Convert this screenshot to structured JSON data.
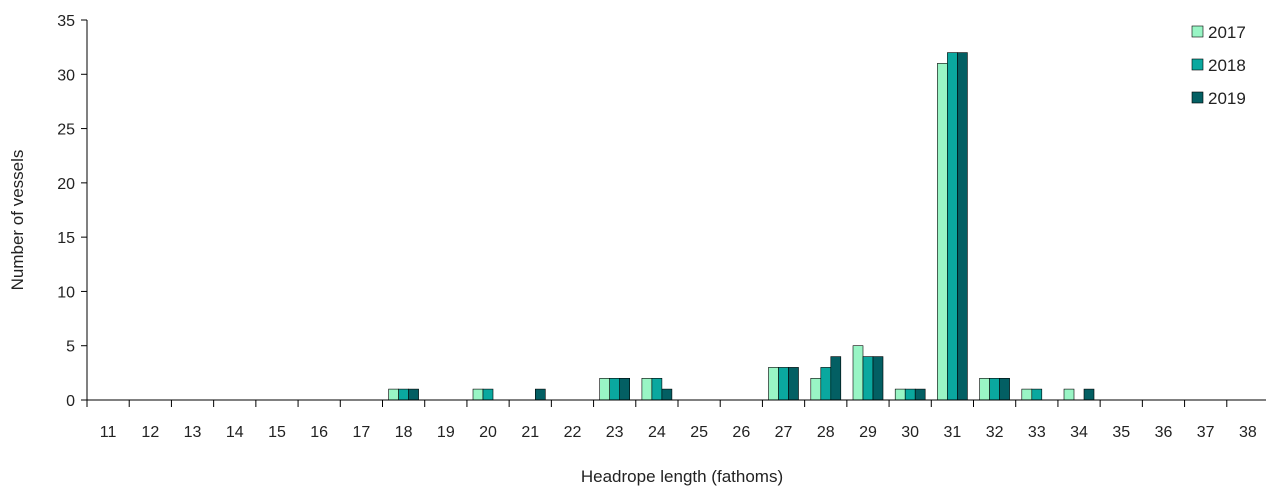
{
  "chart_data": {
    "type": "bar",
    "title": "",
    "xlabel": "Headrope length (fathoms)",
    "ylabel": "Number of vessels",
    "ylim": [
      0,
      35
    ],
    "yticks": [
      0,
      5,
      10,
      15,
      20,
      25,
      30,
      35
    ],
    "grid": false,
    "legend_position": "top-right",
    "categories": [
      "11",
      "12",
      "13",
      "14",
      "15",
      "16",
      "17",
      "18",
      "19",
      "20",
      "21",
      "22",
      "23",
      "24",
      "25",
      "26",
      "27",
      "28",
      "29",
      "30",
      "31",
      "32",
      "33",
      "34",
      "35",
      "36",
      "37",
      "38"
    ],
    "series": [
      {
        "name": "2017",
        "color": "#99F5C5",
        "values": [
          0,
          0,
          0,
          0,
          0,
          0,
          0,
          1,
          0,
          1,
          0,
          0,
          2,
          2,
          0,
          0,
          3,
          2,
          5,
          1,
          31,
          2,
          1,
          1,
          0,
          0,
          0,
          0
        ]
      },
      {
        "name": "2018",
        "color": "#0AA89F",
        "values": [
          0,
          0,
          0,
          0,
          0,
          0,
          0,
          1,
          0,
          1,
          0,
          0,
          2,
          2,
          0,
          0,
          3,
          3,
          4,
          1,
          32,
          2,
          1,
          0,
          0,
          0,
          0,
          0
        ]
      },
      {
        "name": "2019",
        "color": "#035F63",
        "values": [
          0,
          0,
          0,
          0,
          0,
          0,
          0,
          1,
          0,
          0,
          1,
          0,
          2,
          1,
          0,
          0,
          3,
          4,
          4,
          1,
          32,
          2,
          0,
          1,
          0,
          0,
          0,
          0
        ]
      }
    ]
  }
}
